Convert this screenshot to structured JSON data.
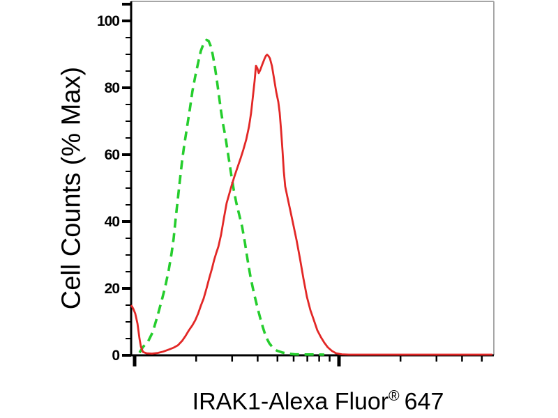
{
  "figure": {
    "background": "#ffffff",
    "text_color": "#000000",
    "ylabel": "Cell Counts (% Max)",
    "xlabel_main": "IRAK1-Alexa Fluor",
    "xlabel_registered": "®",
    "xlabel_suffix": "647"
  },
  "chart_data": {
    "type": "line",
    "subtype": "flow-cytometry-histogram-overlay",
    "title": "",
    "xlabel": "IRAK1-Alexa Fluor® 647",
    "ylabel": "Cell Counts (% Max)",
    "grid": false,
    "legend_shown": false,
    "frame": {
      "top_right_border_color": "#a6a6a6",
      "axis_color": "#000000"
    },
    "x_axis": {
      "scale": "log",
      "tick_labels_shown": false,
      "decades_visible": 1.76,
      "major_ticks_at_decades": [
        0,
        1
      ],
      "minor_ticks": [
        2,
        3,
        4,
        5,
        6,
        7,
        8,
        9
      ]
    },
    "y_axis": {
      "range": [
        0,
        100
      ],
      "unit": "% Max",
      "major_ticks": [
        0,
        20,
        40,
        60,
        80,
        100
      ],
      "minor_tick_step": 5,
      "top_cap_tick_value": 105
    },
    "series": [
      {
        "name": "green-dashed-histogram",
        "color": "#25cd2d",
        "line_style": "dashed",
        "peak": {
          "x_decades": 0.352,
          "y_pct_max": 94.3
        },
        "points": [
          [
            0.024,
            0.8
          ],
          [
            0.041,
            2.5
          ],
          [
            0.065,
            4
          ],
          [
            0.089,
            7
          ],
          [
            0.113,
            12
          ],
          [
            0.133,
            16.5
          ],
          [
            0.15,
            20.5
          ],
          [
            0.167,
            25.5
          ],
          [
            0.181,
            30.5
          ],
          [
            0.191,
            35
          ],
          [
            0.201,
            41
          ],
          [
            0.212,
            47
          ],
          [
            0.222,
            52.5
          ],
          [
            0.232,
            58
          ],
          [
            0.242,
            62.5
          ],
          [
            0.256,
            68
          ],
          [
            0.27,
            73.5
          ],
          [
            0.283,
            79
          ],
          [
            0.297,
            83.5
          ],
          [
            0.311,
            87.5
          ],
          [
            0.324,
            91
          ],
          [
            0.338,
            93.3
          ],
          [
            0.352,
            94.3
          ],
          [
            0.362,
            94.0
          ],
          [
            0.372,
            92.5
          ],
          [
            0.382,
            90
          ],
          [
            0.392,
            86.5
          ],
          [
            0.403,
            82
          ],
          [
            0.413,
            77.5
          ],
          [
            0.423,
            73
          ],
          [
            0.433,
            69
          ],
          [
            0.444,
            65.5
          ],
          [
            0.454,
            61.5
          ],
          [
            0.464,
            57.5
          ],
          [
            0.474,
            53.5
          ],
          [
            0.485,
            49.5
          ],
          [
            0.498,
            45.5
          ],
          [
            0.512,
            42
          ],
          [
            0.526,
            38.5
          ],
          [
            0.539,
            34
          ],
          [
            0.553,
            28.5
          ],
          [
            0.567,
            23.5
          ],
          [
            0.577,
            20.5
          ],
          [
            0.587,
            17.8
          ],
          [
            0.601,
            14.3
          ],
          [
            0.614,
            11.3
          ],
          [
            0.628,
            8.3
          ],
          [
            0.642,
            5.6
          ],
          [
            0.659,
            3.6
          ],
          [
            0.676,
            2.3
          ],
          [
            0.696,
            1.4
          ],
          [
            0.72,
            0.9
          ],
          [
            0.747,
            0.5
          ],
          [
            0.782,
            0.3
          ],
          [
            0.833,
            0.25
          ],
          [
            0.884,
            0.25
          ],
          [
            0.928,
            0.2
          ]
        ]
      },
      {
        "name": "red-solid-histogram",
        "color": "#e22726",
        "line_style": "solid",
        "peak": {
          "x_decades": 0.648,
          "y_pct_max": 89.9
        },
        "points": [
          [
            -0.017,
            15
          ],
          [
            -0.007,
            14
          ],
          [
            0.003,
            12.5
          ],
          [
            0.014,
            9.5
          ],
          [
            0.024,
            5
          ],
          [
            0.031,
            2.5
          ],
          [
            0.041,
            1
          ],
          [
            0.058,
            0.6
          ],
          [
            0.085,
            0.5
          ],
          [
            0.113,
            0.7
          ],
          [
            0.14,
            1.1
          ],
          [
            0.167,
            1.7
          ],
          [
            0.191,
            2.3
          ],
          [
            0.212,
            3
          ],
          [
            0.232,
            4.3
          ],
          [
            0.249,
            5.8
          ],
          [
            0.266,
            7.5
          ],
          [
            0.283,
            9
          ],
          [
            0.297,
            10.5
          ],
          [
            0.311,
            12.5
          ],
          [
            0.324,
            14.8
          ],
          [
            0.338,
            17
          ],
          [
            0.352,
            20
          ],
          [
            0.365,
            23
          ],
          [
            0.379,
            26
          ],
          [
            0.389,
            28.5
          ],
          [
            0.399,
            30.5
          ],
          [
            0.41,
            32.5
          ],
          [
            0.423,
            36
          ],
          [
            0.437,
            41
          ],
          [
            0.45,
            45.5
          ],
          [
            0.464,
            48.5
          ],
          [
            0.478,
            51.5
          ],
          [
            0.491,
            54
          ],
          [
            0.505,
            56.5
          ],
          [
            0.519,
            59
          ],
          [
            0.532,
            61.5
          ],
          [
            0.546,
            64.5
          ],
          [
            0.56,
            68.5
          ],
          [
            0.57,
            72.5
          ],
          [
            0.58,
            78
          ],
          [
            0.587,
            82
          ],
          [
            0.594,
            86.6
          ],
          [
            0.601,
            85.8
          ],
          [
            0.607,
            84.4
          ],
          [
            0.614,
            85.2
          ],
          [
            0.625,
            87
          ],
          [
            0.635,
            88.6
          ],
          [
            0.642,
            89.5
          ],
          [
            0.648,
            89.9
          ],
          [
            0.655,
            89.5
          ],
          [
            0.662,
            88.8
          ],
          [
            0.672,
            86.5
          ],
          [
            0.683,
            82.5
          ],
          [
            0.693,
            78.8
          ],
          [
            0.703,
            75.8
          ],
          [
            0.71,
            72.5
          ],
          [
            0.717,
            67
          ],
          [
            0.724,
            61
          ],
          [
            0.73,
            55
          ],
          [
            0.737,
            50.5
          ],
          [
            0.747,
            47.5
          ],
          [
            0.761,
            43.5
          ],
          [
            0.775,
            39.5
          ],
          [
            0.792,
            34.5
          ],
          [
            0.809,
            29
          ],
          [
            0.826,
            23
          ],
          [
            0.843,
            17.5
          ],
          [
            0.86,
            13.5
          ],
          [
            0.877,
            10.5
          ],
          [
            0.894,
            7.5
          ],
          [
            0.911,
            5.5
          ],
          [
            0.928,
            3.8
          ],
          [
            0.945,
            2.4
          ],
          [
            0.966,
            1.3
          ],
          [
            0.986,
            0.6
          ],
          [
            1.014,
            0.3
          ],
          [
            1.048,
            0.2
          ],
          [
            1.15,
            0.2
          ],
          [
            1.321,
            0.2
          ],
          [
            1.526,
            0.2
          ],
          [
            1.751,
            0.2
          ]
        ]
      }
    ]
  }
}
